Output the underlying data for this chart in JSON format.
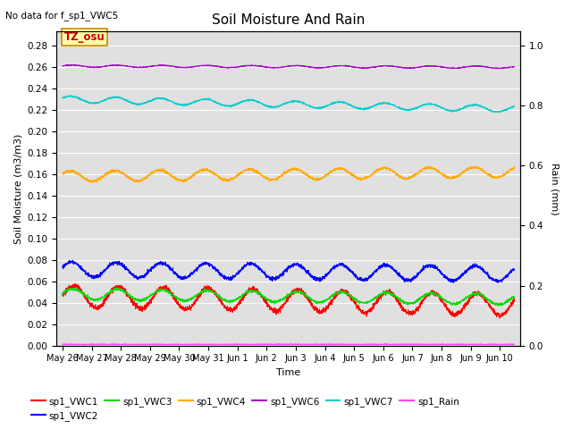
{
  "title": "Soil Moisture And Rain",
  "no_data_text": "No data for f_sp1_VWC5",
  "annotation_text": "TZ_osu",
  "xlabel": "Time",
  "ylabel_left": "Soil Moisture (m3/m3)",
  "ylabel_right": "Rain (mm)",
  "ylim_left": [
    0.0,
    0.2933
  ],
  "ylim_right": [
    0.0,
    1.048
  ],
  "background_color": "#e0e0e0",
  "fig_color": "#ffffff",
  "n_points": 3000,
  "series": {
    "sp1_VWC1": {
      "color": "#ff0000",
      "base": 0.046,
      "amp": 0.01,
      "trend": -0.008,
      "freq": 0.65,
      "phase": 0.0
    },
    "sp1_VWC2": {
      "color": "#0000ff",
      "base": 0.071,
      "amp": 0.007,
      "trend": -0.004,
      "freq": 0.65,
      "phase": 0.3
    },
    "sp1_VWC3": {
      "color": "#00dd00",
      "base": 0.048,
      "amp": 0.005,
      "trend": -0.005,
      "freq": 0.65,
      "phase": 0.15
    },
    "sp1_VWC4": {
      "color": "#ffaa00",
      "base": 0.158,
      "amp": 0.005,
      "trend": 0.004,
      "freq": 0.65,
      "phase": 0.5
    },
    "sp1_VWC6": {
      "color": "#aa00cc",
      "base": 0.261,
      "amp": 0.001,
      "trend": -0.001,
      "freq": 0.65,
      "phase": 0.2
    },
    "sp1_VWC7": {
      "color": "#00cccc",
      "base": 0.23,
      "amp": 0.003,
      "trend": -0.009,
      "freq": 0.65,
      "phase": 0.4
    },
    "sp1_Rain": {
      "color": "#ff44ff",
      "base": 0.001,
      "amp": 0.0,
      "trend": 0.0,
      "freq": 0.0,
      "phase": 0.0
    }
  },
  "xtick_labels": [
    "May 26",
    "May 27",
    "May 28",
    "May 29",
    "May 30",
    "May 31",
    "Jun 1",
    "Jun 2",
    "Jun 3",
    "Jun 4",
    "Jun 5",
    "Jun 6",
    "Jun 7",
    "Jun 8",
    "Jun 9",
    "Jun 10"
  ],
  "xtick_positions": [
    0,
    1,
    2,
    3,
    4,
    5,
    6,
    7,
    8,
    9,
    10,
    11,
    12,
    13,
    14,
    15
  ],
  "yticks_left": [
    0.0,
    0.02,
    0.04,
    0.06,
    0.08,
    0.1,
    0.12,
    0.14,
    0.16,
    0.18,
    0.2,
    0.22,
    0.24,
    0.26,
    0.28
  ],
  "yticks_right": [
    0.0,
    0.2,
    0.4,
    0.6,
    0.8,
    1.0
  ],
  "legend_entries": [
    {
      "label": "sp1_VWC1",
      "color": "#ff0000"
    },
    {
      "label": "sp1_VWC2",
      "color": "#0000ff"
    },
    {
      "label": "sp1_VWC3",
      "color": "#00dd00"
    },
    {
      "label": "sp1_VWC4",
      "color": "#ffaa00"
    },
    {
      "label": "sp1_VWC6",
      "color": "#aa00cc"
    },
    {
      "label": "sp1_VWC7",
      "color": "#00cccc"
    },
    {
      "label": "sp1_Rain",
      "color": "#ff44ff"
    }
  ]
}
